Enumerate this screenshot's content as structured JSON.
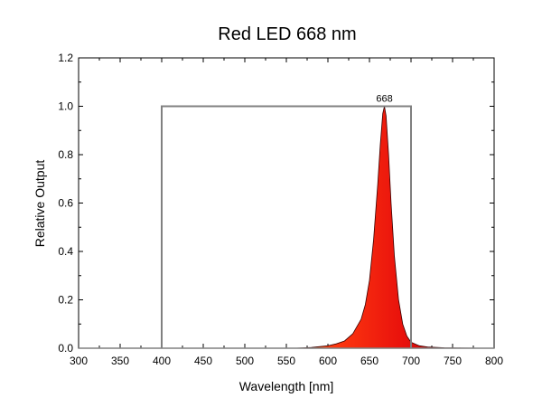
{
  "chart_data": {
    "type": "area",
    "title": "Red LED 668 nm",
    "xlabel": "Wavelength [nm]",
    "ylabel": "Relative Output",
    "xlim": [
      300,
      800
    ],
    "ylim": [
      0,
      1.2
    ],
    "xticks": [
      300,
      350,
      400,
      450,
      500,
      550,
      600,
      650,
      700,
      750,
      800
    ],
    "yticks": [
      0.0,
      0.2,
      0.4,
      0.6,
      0.8,
      1.0,
      1.2
    ],
    "ytick_labels": [
      "0.0",
      "0.2",
      "0.4",
      "0.6",
      "0.8",
      "1.0",
      "1.2"
    ],
    "grid": false,
    "series": [
      {
        "values_x": [
          560,
          580,
          600,
          610,
          620,
          630,
          640,
          645,
          650,
          655,
          660,
          663,
          666,
          668,
          670,
          673,
          676,
          680,
          685,
          690,
          695,
          700,
          710,
          720,
          740,
          760,
          800
        ],
        "values_y": [
          0,
          0.003,
          0.01,
          0.018,
          0.03,
          0.06,
          0.12,
          0.18,
          0.28,
          0.45,
          0.68,
          0.84,
          0.97,
          1.0,
          0.96,
          0.8,
          0.6,
          0.38,
          0.2,
          0.1,
          0.05,
          0.025,
          0.01,
          0.005,
          0.002,
          0.001,
          0
        ],
        "color": "#e8100c"
      }
    ],
    "band": {
      "x_start": 400,
      "x_end": 700,
      "y": 1.0,
      "color": "#808080"
    },
    "annotations": [
      {
        "x": 668,
        "y": 1.0,
        "text": "668"
      }
    ]
  }
}
